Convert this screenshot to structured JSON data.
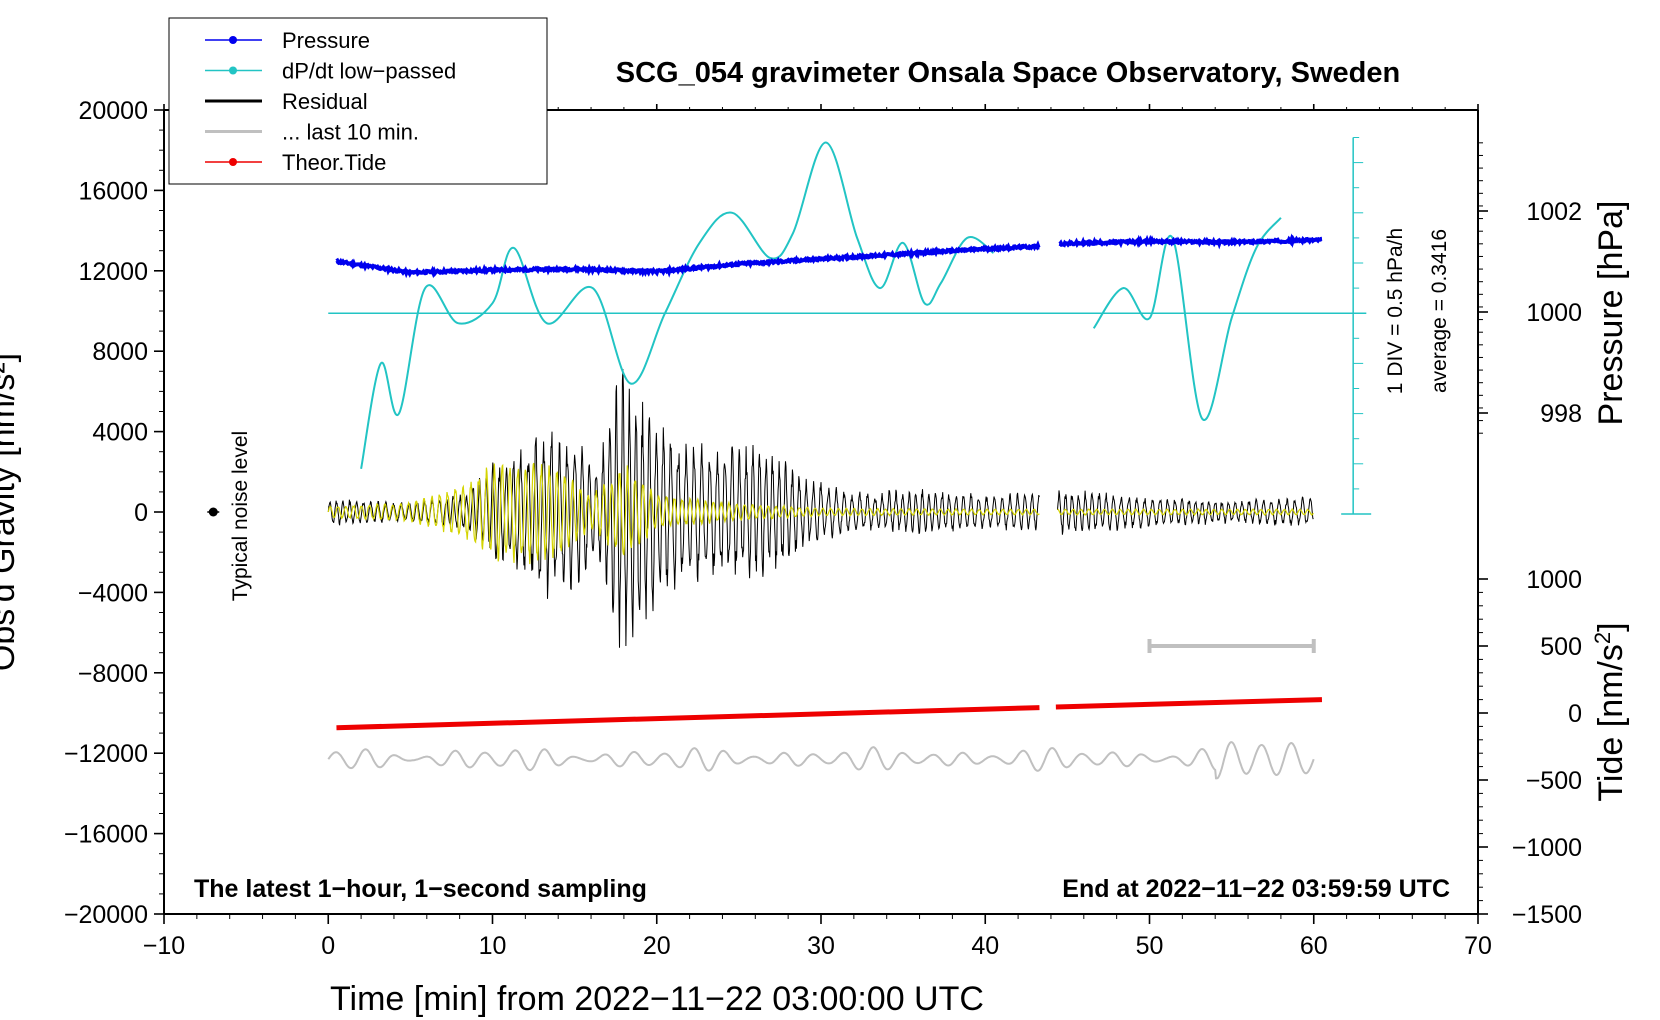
{
  "chart_data": {
    "type": "line",
    "title": "SCG_054 gravimeter Onsala Space Observatory, Sweden",
    "xlabel": "Time [min] from 2022−11−22 03:00:00 UTC",
    "ylabel_left": "Obs'd Gravity [nm/s²]",
    "ylabel_right_upper": "Pressure [hPa]",
    "ylabel_right_lower": "Tide [nm/s²]",
    "ylabel_right_lower_main": "Tide [nm/s",
    "ylabel_right_lower_sup": "2",
    "ylabel_right_lower_end": "]",
    "xlim": [
      -10,
      70
    ],
    "ylim_left": [
      -20000,
      20000
    ],
    "x_ticks": [
      -10,
      0,
      10,
      20,
      30,
      40,
      50,
      60,
      70
    ],
    "x_tick_labels": [
      "−10",
      "0",
      "10",
      "20",
      "30",
      "40",
      "50",
      "60",
      "70"
    ],
    "y_ticks_left": [
      20000,
      16000,
      12000,
      8000,
      4000,
      0,
      -4000,
      -8000,
      -12000,
      -16000,
      -20000
    ],
    "y_tick_labels_left": [
      "20000",
      "16000",
      "12000",
      "8000",
      "4000",
      "0",
      "−4000",
      "−8000",
      "−12000",
      "−16000",
      "−20000"
    ],
    "pressure_ticks": [
      1002,
      1000,
      998
    ],
    "pressure_tick_labels": [
      "1002",
      "1000",
      "998"
    ],
    "tide_ticks": [
      1000,
      500,
      0,
      -500,
      -1000,
      -1500
    ],
    "tide_tick_labels": [
      "1000",
      "500",
      "0",
      "−500",
      "−1000",
      "−1500"
    ],
    "note_left": "The latest 1−hour, 1−second sampling",
    "note_right": "End at 2022−11−22 03:59:59 UTC",
    "noise_label": "Typical noise level",
    "noise_point": {
      "x": -7,
      "y": 0
    },
    "dpdt_scale_label": "1 DIV = 0.5 hPa/h",
    "dpdt_average_label": "average = 0.3416",
    "last10_bar": {
      "x_start": 50,
      "x_end": 60,
      "tide_level": 500
    },
    "legend": [
      {
        "label": "Pressure",
        "color": "#0000ee",
        "marker": true
      },
      {
        "label": "dP/dt low−passed",
        "color": "#22c4c4",
        "marker": true
      },
      {
        "label": "Residual",
        "color": "#000000",
        "marker": false
      },
      {
        "label": "... last 10 min.",
        "color": "#c0c0c0",
        "marker": false
      },
      {
        "label": "Theor.Tide",
        "color": "#ee0000",
        "marker": true
      }
    ],
    "series": [
      {
        "name": "Pressure",
        "axis": "pressure_hPa",
        "color": "#0000ee",
        "gap": [
          43.5,
          44.5
        ],
        "x": [
          0.5,
          3,
          5,
          10,
          15,
          20,
          25,
          30,
          35,
          40,
          43.3,
          44.6,
          50,
          55,
          60.5
        ],
        "y": [
          1001.0,
          1000.88,
          1000.78,
          1000.83,
          1000.85,
          1000.8,
          1000.95,
          1001.05,
          1001.15,
          1001.25,
          1001.3,
          1001.35,
          1001.4,
          1001.38,
          1001.43
        ]
      },
      {
        "name": "dP/dt low-passed",
        "axis": "dpdt_div",
        "color": "#22c4c4",
        "baseline_div": 4,
        "gap": [
          40.5,
          46.5
        ],
        "x": [
          2.0,
          3.2,
          4.3,
          5.9,
          7.9,
          10.0,
          11.3,
          13.3,
          16.1,
          18.4,
          20.5,
          22.6,
          24.6,
          26.9,
          28.3,
          30.3,
          32.2,
          33.6,
          35.0,
          36.3,
          37.3,
          38.9,
          40.5,
          46.6,
          48.4,
          50.0,
          51.4,
          53.2,
          55.0,
          56.5,
          58.0
        ],
        "y": [
          0.9,
          3.0,
          2.0,
          4.5,
          3.8,
          4.2,
          5.3,
          3.8,
          4.5,
          2.6,
          4.0,
          5.4,
          6.0,
          5.1,
          5.6,
          7.4,
          5.5,
          4.5,
          5.4,
          4.2,
          4.6,
          5.5,
          5.2,
          3.7,
          4.5,
          3.9,
          5.5,
          1.9,
          3.9,
          5.3,
          5.9
        ]
      },
      {
        "name": "Residual",
        "axis": "gravity_nm_s2",
        "color": "#000000",
        "description_envelope_x": [
          0,
          5,
          8.5,
          10,
          12,
          13.5,
          15,
          16.5,
          18,
          19.5,
          21,
          23,
          25,
          27,
          29,
          32,
          36,
          40,
          43,
          44.5,
          50,
          55,
          60
        ],
        "description_envelope_y": [
          700,
          500,
          1000,
          2500,
          3500,
          4500,
          4000,
          2800,
          8000,
          5300,
          4000,
          3500,
          3500,
          3300,
          1800,
          1000,
          1200,
          900,
          1000,
          1200,
          800,
          600,
          800
        ]
      },
      {
        "name": "Filtered band (yellow)",
        "axis": "gravity_nm_s2",
        "color": "#d4d400",
        "description_envelope_x": [
          0,
          5,
          8.5,
          10,
          12,
          14,
          16,
          18,
          20,
          24,
          30,
          40,
          60
        ],
        "description_envelope_y": [
          300,
          500,
          1500,
          2500,
          2700,
          2300,
          900,
          2500,
          900,
          500,
          200,
          150,
          150
        ]
      },
      {
        "name": "... last 10 min.",
        "axis": "gravity_nm_s2",
        "color": "#c0c0c0",
        "baseline": -12300,
        "amplitude": 600
      },
      {
        "name": "Theor.Tide",
        "axis": "tide_nm_s2",
        "color": "#ee0000",
        "gap": [
          43.3,
          44.3
        ],
        "x": [
          0.5,
          43.3,
          44.3,
          60.5
        ],
        "y": [
          -110,
          40,
          45,
          100
        ]
      }
    ]
  }
}
